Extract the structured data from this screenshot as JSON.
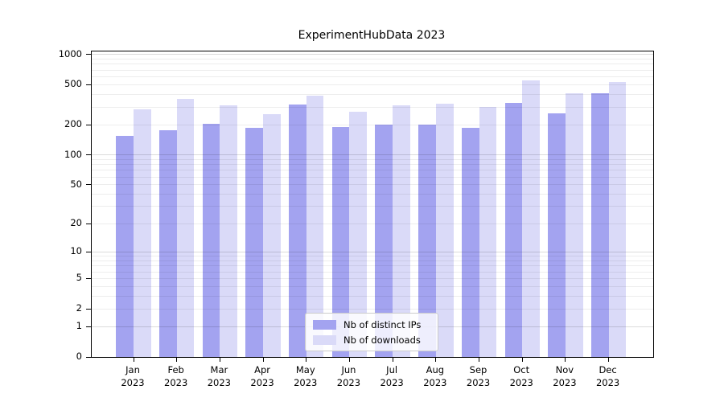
{
  "chart_data": {
    "type": "bar",
    "title": "ExperimentHubData 2023",
    "categories": [
      "Jan",
      "Feb",
      "Mar",
      "Apr",
      "May",
      "Jun",
      "Jul",
      "Aug",
      "Sep",
      "Oct",
      "Nov",
      "Dec"
    ],
    "x_tick_year": "2023",
    "series": [
      {
        "name": "Nb of distinct IPs",
        "color": "#a3a3f0",
        "values": [
          155,
          175,
          205,
          185,
          320,
          190,
          200,
          200,
          185,
          330,
          260,
          415
        ]
      },
      {
        "name": "Nb of downloads",
        "color": "#dadaf8",
        "values": [
          285,
          360,
          310,
          255,
          390,
          270,
          315,
          325,
          300,
          550,
          410,
          530
        ]
      }
    ],
    "y_axis": {
      "scale": "log1p",
      "tick_values": [
        0,
        1,
        2,
        5,
        10,
        20,
        50,
        100,
        200,
        500,
        1000
      ],
      "tick_labels": [
        "0",
        "1",
        "2",
        "5",
        "10",
        "20",
        "50",
        "100",
        "200",
        "500",
        "1000"
      ],
      "ylim": [
        0,
        1000
      ]
    },
    "xlabel": "",
    "ylabel": "",
    "grid": "on",
    "legend_position": "lower center"
  }
}
